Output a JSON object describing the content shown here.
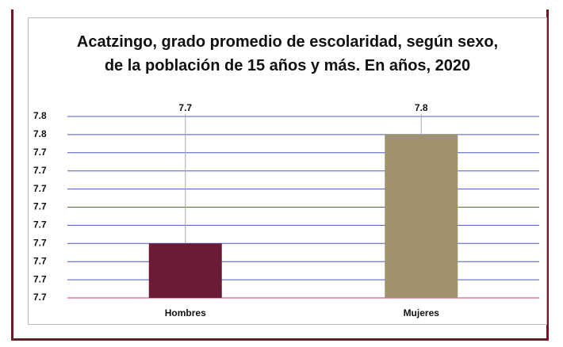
{
  "chart_data": {
    "type": "bar",
    "title": "Acatzingo, grado promedio de escolaridad, según sexo, de la población de 15 años y más. En años, 2020",
    "categories": [
      "Hombres",
      "Mujeres"
    ],
    "values": [
      7.69,
      7.75
    ],
    "value_labels": [
      "7.7",
      "7.8"
    ],
    "colors": [
      "#6b1b33",
      "#a0936c"
    ],
    "ylim": [
      7.66,
      7.76
    ],
    "yticks": [
      {
        "value": 7.66,
        "label": "7.7"
      },
      {
        "value": 7.67,
        "label": "7.7"
      },
      {
        "value": 7.68,
        "label": "7.7"
      },
      {
        "value": 7.69,
        "label": "7.7"
      },
      {
        "value": 7.7,
        "label": "7.7"
      },
      {
        "value": 7.71,
        "label": "7.7"
      },
      {
        "value": 7.72,
        "label": "7.7"
      },
      {
        "value": 7.73,
        "label": "7.7"
      },
      {
        "value": 7.74,
        "label": "7.7"
      },
      {
        "value": 7.75,
        "label": "7.8"
      },
      {
        "value": 7.76,
        "label": "7.8"
      }
    ],
    "grid": true
  }
}
